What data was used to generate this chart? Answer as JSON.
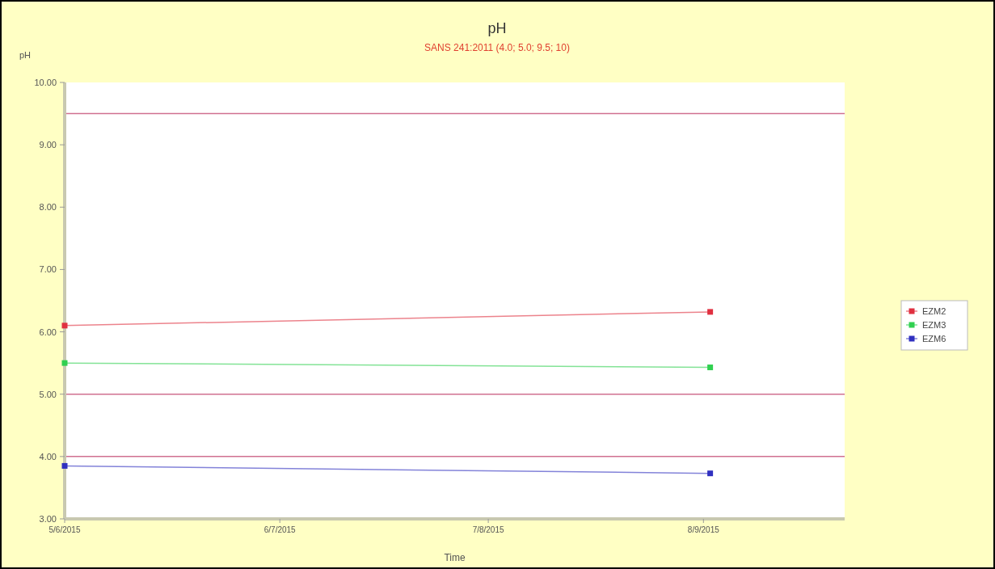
{
  "chart_data": {
    "type": "line",
    "title": "pH",
    "subtitle": "SANS 241:2011 (4.0; 5.0; 9.5; 10)",
    "xlabel": "Time",
    "ylabel": "pH",
    "xlim": [
      "2015-05-06",
      "2015-08-30"
    ],
    "xticks": [
      {
        "value": "2015-05-06",
        "label": "5/6/2015"
      },
      {
        "value": "2015-06-07",
        "label": "6/7/2015"
      },
      {
        "value": "2015-07-08",
        "label": "7/8/2015"
      },
      {
        "value": "2015-08-09",
        "label": "8/9/2015"
      }
    ],
    "ylim": [
      3,
      10
    ],
    "yticks": [
      {
        "value": 3,
        "label": "3.00"
      },
      {
        "value": 4,
        "label": "4.00"
      },
      {
        "value": 5,
        "label": "5.00"
      },
      {
        "value": 6,
        "label": "6.00"
      },
      {
        "value": 7,
        "label": "7.00"
      },
      {
        "value": 8,
        "label": "8.00"
      },
      {
        "value": 9,
        "label": "9.00"
      },
      {
        "value": 10,
        "label": "10.00"
      }
    ],
    "x": [
      "2015-05-06",
      "2015-08-10"
    ],
    "series": [
      {
        "name": "EZM2",
        "color": "#e03040",
        "values": [
          6.1,
          6.32
        ]
      },
      {
        "name": "EZM3",
        "color": "#30d050",
        "values": [
          5.5,
          5.43
        ]
      },
      {
        "name": "EZM6",
        "color": "#3030c0",
        "values": [
          3.85,
          3.73
        ]
      }
    ],
    "ref_lines": [
      {
        "axis": "y",
        "value": 9.5,
        "color": "#d07090"
      },
      {
        "axis": "y",
        "value": 5,
        "color": "#d07090"
      },
      {
        "axis": "y",
        "value": 4,
        "color": "#d07090"
      }
    ],
    "marker": "square",
    "legend": "right",
    "grid": false
  }
}
